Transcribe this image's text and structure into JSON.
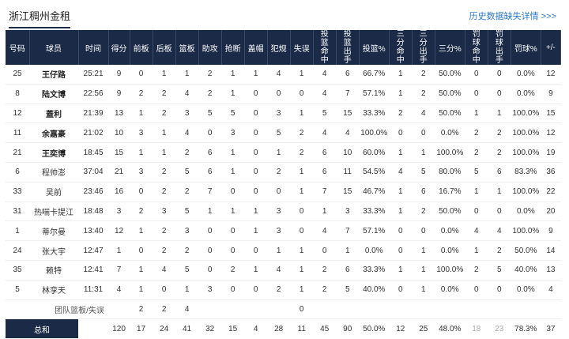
{
  "header": {
    "team_title": "浙江稠州金租",
    "history_link": "历史数据缺失详情 >>>"
  },
  "columns": [
    "号码",
    "球员",
    "时间",
    "得分",
    "前板",
    "后板",
    "篮板",
    "助攻",
    "抢断",
    "盖帽",
    "犯规",
    "失误",
    "投篮命中",
    "投篮出手",
    "投篮%",
    "三分命中",
    "三分出手",
    "三分%",
    "罚球命中",
    "罚球出手",
    "罚球%",
    "+/-"
  ],
  "players": [
    {
      "number": "25",
      "name": "王仔路",
      "starter": true,
      "cells": [
        "25:21",
        "9",
        "0",
        "1",
        "1",
        "2",
        "1",
        "1",
        "4",
        "1",
        "4",
        "6",
        "66.7%",
        "1",
        "2",
        "50.0%",
        "0",
        "0",
        "0.0%",
        "12"
      ]
    },
    {
      "number": "8",
      "name": "陆文博",
      "starter": true,
      "cells": [
        "22:56",
        "9",
        "2",
        "2",
        "4",
        "2",
        "1",
        "0",
        "0",
        "0",
        "4",
        "7",
        "57.1%",
        "1",
        "2",
        "50.0%",
        "0",
        "0",
        "0.0%",
        "9"
      ]
    },
    {
      "number": "12",
      "name": "蓋利",
      "starter": true,
      "cells": [
        "21:39",
        "13",
        "1",
        "2",
        "3",
        "5",
        "5",
        "0",
        "3",
        "1",
        "5",
        "15",
        "33.3%",
        "2",
        "4",
        "50.0%",
        "1",
        "1",
        "100.0%",
        "15"
      ]
    },
    {
      "number": "11",
      "name": "余嘉豪",
      "starter": true,
      "cells": [
        "21:02",
        "10",
        "3",
        "1",
        "4",
        "0",
        "3",
        "0",
        "5",
        "2",
        "4",
        "4",
        "100.0%",
        "0",
        "0",
        "0.0%",
        "2",
        "2",
        "100.0%",
        "12"
      ]
    },
    {
      "number": "21",
      "name": "王奕博",
      "starter": true,
      "cells": [
        "18:45",
        "15",
        "1",
        "1",
        "2",
        "6",
        "1",
        "0",
        "1",
        "2",
        "6",
        "10",
        "60.0%",
        "1",
        "1",
        "100.0%",
        "2",
        "2",
        "100.0%",
        "19"
      ]
    },
    {
      "number": "6",
      "name": "程帅澎",
      "starter": false,
      "cells": [
        "37:04",
        "21",
        "3",
        "2",
        "5",
        "6",
        "1",
        "0",
        "2",
        "1",
        "6",
        "11",
        "54.5%",
        "4",
        "5",
        "80.0%",
        "5",
        "6",
        "83.3%",
        "36"
      ]
    },
    {
      "number": "33",
      "name": "吴前",
      "starter": false,
      "cells": [
        "23:46",
        "16",
        "0",
        "2",
        "2",
        "7",
        "0",
        "0",
        "0",
        "1",
        "7",
        "15",
        "46.7%",
        "1",
        "6",
        "16.7%",
        "1",
        "1",
        "100.0%",
        "22"
      ]
    },
    {
      "number": "31",
      "name": "热喘卡提江",
      "starter": false,
      "cells": [
        "18:48",
        "3",
        "2",
        "3",
        "5",
        "1",
        "1",
        "1",
        "3",
        "0",
        "1",
        "3",
        "33.3%",
        "1",
        "2",
        "50.0%",
        "0",
        "0",
        "0.0%",
        "20"
      ]
    },
    {
      "number": "1",
      "name": "蒂尔曼",
      "starter": false,
      "cells": [
        "13:40",
        "12",
        "1",
        "2",
        "3",
        "0",
        "0",
        "1",
        "3",
        "0",
        "4",
        "7",
        "57.1%",
        "0",
        "0",
        "0.0%",
        "4",
        "4",
        "100.0%",
        "9"
      ]
    },
    {
      "number": "24",
      "name": "张大宇",
      "starter": false,
      "cells": [
        "12:47",
        "1",
        "0",
        "2",
        "2",
        "0",
        "0",
        "0",
        "1",
        "1",
        "0",
        "1",
        "0.0%",
        "0",
        "1",
        "0.0%",
        "1",
        "2",
        "50.0%",
        "14"
      ]
    },
    {
      "number": "35",
      "name": "赖特",
      "starter": false,
      "cells": [
        "12:41",
        "7",
        "1",
        "4",
        "5",
        "0",
        "2",
        "1",
        "4",
        "1",
        "2",
        "6",
        "33.3%",
        "1",
        "1",
        "100.0%",
        "2",
        "5",
        "40.0%",
        "13"
      ]
    },
    {
      "number": "5",
      "name": "林孪天",
      "starter": false,
      "cells": [
        "11:31",
        "4",
        "1",
        "0",
        "1",
        "3",
        "0",
        "0",
        "2",
        "1",
        "2",
        "5",
        "40.0%",
        "0",
        "1",
        "0.0%",
        "0",
        "0",
        "0.0%",
        "4"
      ]
    }
  ],
  "team_row": {
    "label": "团队篮板/失误",
    "front": "2",
    "back": "2",
    "reb": "4",
    "tov": "0"
  },
  "totals": {
    "label": "总和",
    "cells": [
      "",
      "120",
      "17",
      "24",
      "41",
      "32",
      "15",
      "4",
      "28",
      "11",
      "45",
      "90",
      "50.0%",
      "12",
      "25",
      "48.0%",
      "18",
      "23",
      "78.3%",
      "37"
    ]
  }
}
